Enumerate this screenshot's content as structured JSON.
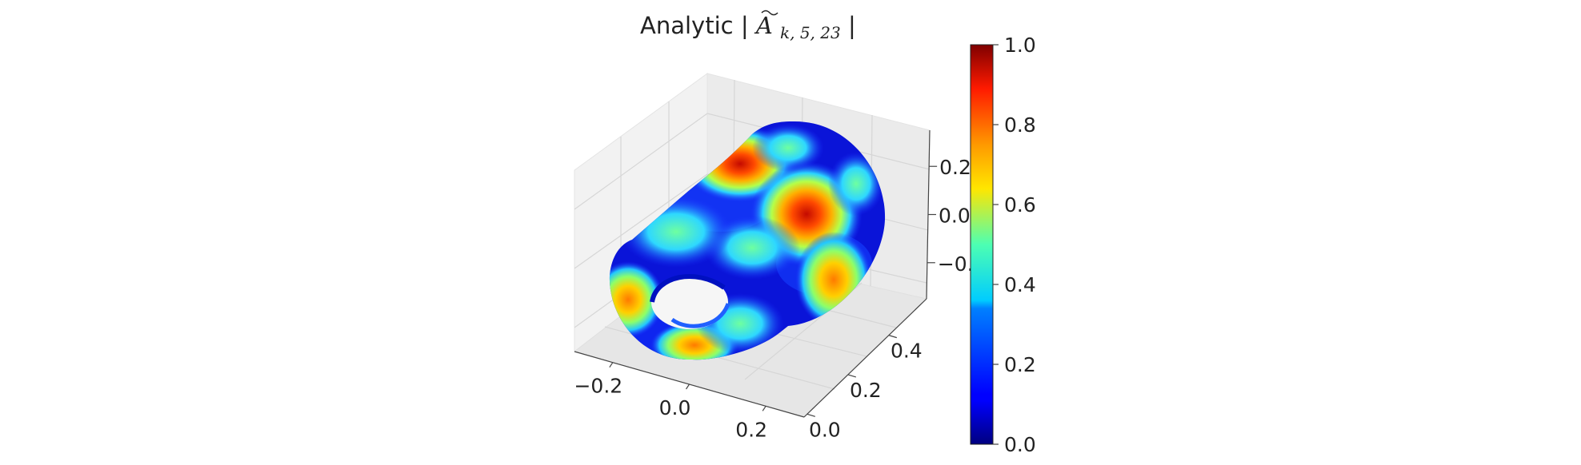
{
  "chart_data": {
    "type": "surface3d",
    "title_prefix": "Analytic ",
    "title_math_base": "A",
    "title_math_sub": "k, 5, 23",
    "title": "Analytic |Ã_{k,5,23}|",
    "colormap": "jet",
    "x_axis": {
      "ticks": [
        -0.2,
        0.0,
        0.2
      ],
      "tick_labels": [
        "−0.2",
        "0.0",
        "0.2"
      ]
    },
    "y_axis": {
      "ticks": [
        0.0,
        0.2,
        0.4
      ],
      "tick_labels": [
        "0.0",
        "0.2",
        "0.4"
      ]
    },
    "z_axis": {
      "ticks": [
        -0.2,
        0.0,
        0.2
      ],
      "tick_labels": [
        "−0.2",
        "0.0",
        "0.2"
      ]
    },
    "colorbar": {
      "range": [
        0.0,
        1.0
      ],
      "ticks": [
        0.0,
        0.2,
        0.4,
        0.6,
        0.8,
        1.0
      ],
      "tick_labels": [
        "0.0",
        "0.2",
        "0.4",
        "0.6",
        "0.8",
        "1.0"
      ]
    },
    "grid": true
  }
}
